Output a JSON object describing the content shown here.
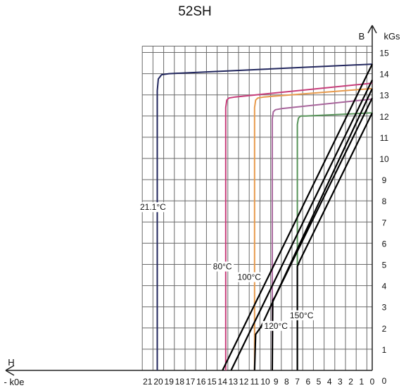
{
  "chart_data": {
    "type": "line",
    "title": "52SH",
    "x_axis": {
      "symbol": "H",
      "unit": "- k0e",
      "ticks": [
        "21",
        "20",
        "19",
        "18",
        "17",
        "16",
        "15",
        "14",
        "13",
        "12",
        "11",
        "10",
        "9",
        "8",
        "7",
        "6",
        "5",
        "4",
        "3",
        "2",
        "1",
        "0"
      ],
      "range": [
        21.5,
        0
      ],
      "direction": "increasing-to-left"
    },
    "y_axis": {
      "symbol": "B",
      "unit": "kGs",
      "ticks": [
        "0",
        "1",
        "2",
        "3",
        "4",
        "5",
        "6",
        "7",
        "8",
        "9",
        "10",
        "11",
        "12",
        "13",
        "14",
        "15"
      ],
      "range": [
        0,
        15.3
      ]
    },
    "grid": true,
    "series": [
      {
        "name": "21.1°C",
        "color": "#22275e",
        "points": [
          [
            20.1,
            0
          ],
          [
            20.1,
            13.2
          ],
          [
            20.0,
            13.75
          ],
          [
            19.7,
            13.95
          ],
          [
            19.0,
            14.0
          ],
          [
            0,
            14.45
          ]
        ]
      },
      {
        "name": "80°C",
        "color": "#c73d7a",
        "points": [
          [
            13.7,
            0
          ],
          [
            13.7,
            12.4
          ],
          [
            13.6,
            12.75
          ],
          [
            13.4,
            12.85
          ],
          [
            12.8,
            12.9
          ],
          [
            0,
            13.55
          ]
        ]
      },
      {
        "name": "100°C",
        "color": "#e79a4c",
        "points": [
          [
            11.0,
            0
          ],
          [
            11.0,
            12.4
          ],
          [
            10.9,
            12.75
          ],
          [
            10.7,
            12.85
          ],
          [
            10.1,
            12.9
          ],
          [
            0,
            13.3
          ]
        ]
      },
      {
        "name": "120°C",
        "color": "#a8659c",
        "points": [
          [
            9.35,
            0
          ],
          [
            9.35,
            11.85
          ],
          [
            9.25,
            12.2
          ],
          [
            9.05,
            12.3
          ],
          [
            8.5,
            12.35
          ],
          [
            0,
            12.8
          ]
        ]
      },
      {
        "name": "150°C",
        "color": "#58945a",
        "points": [
          [
            7.0,
            0
          ],
          [
            7.0,
            11.6
          ],
          [
            6.9,
            11.9
          ],
          [
            6.7,
            12.0
          ],
          [
            6.2,
            12.0
          ],
          [
            0,
            12.15
          ]
        ]
      }
    ],
    "load_lines": [
      {
        "color": "#000000",
        "points": [
          [
            14.0,
            0
          ],
          [
            0,
            14.45
          ]
        ]
      },
      {
        "color": "#000000",
        "points": [
          [
            13.2,
            0
          ],
          [
            0,
            13.7
          ]
        ]
      },
      {
        "color": "#000000",
        "points": [
          [
            11.0,
            0
          ],
          [
            10.9,
            1.7
          ],
          [
            10.4,
            2.05
          ],
          [
            0,
            13.3
          ]
        ]
      },
      {
        "color": "#000000",
        "points": [
          [
            9.35,
            0
          ],
          [
            9.3,
            3.3
          ],
          [
            9.05,
            3.5
          ],
          [
            0,
            12.85
          ]
        ]
      },
      {
        "color": "#000000",
        "points": [
          [
            7.0,
            0
          ],
          [
            7.0,
            4.9
          ],
          [
            6.75,
            5.2
          ],
          [
            0,
            12.15
          ]
        ]
      }
    ],
    "annotations": [
      {
        "text": "21.1°C",
        "x": 20.5,
        "y": 7.6
      },
      {
        "text": "80°C",
        "x": 14.0,
        "y": 4.8
      },
      {
        "text": "100°C",
        "x": 11.5,
        "y": 4.3
      },
      {
        "text": "120°C",
        "x": 9.0,
        "y": 2.0
      },
      {
        "text": "150°C",
        "x": 6.6,
        "y": 2.5
      }
    ]
  }
}
